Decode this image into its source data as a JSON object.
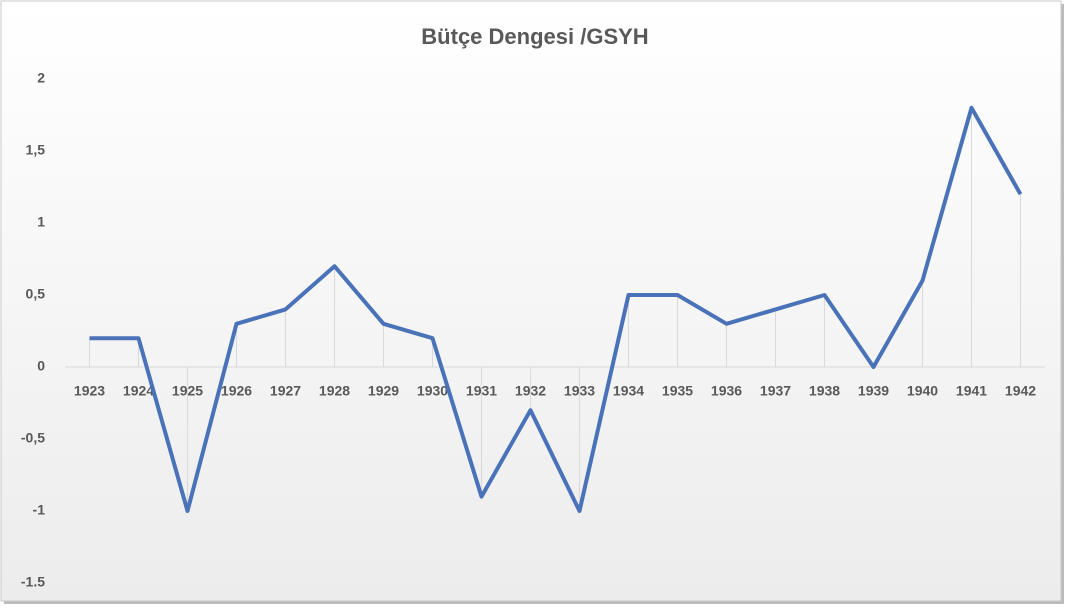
{
  "chart_data": {
    "type": "line",
    "title": "Bütçe Dengesi /GSYH",
    "categories": [
      "1923",
      "1924",
      "1925",
      "1926",
      "1927",
      "1928",
      "1929",
      "1930",
      "1931",
      "1932",
      "1933",
      "1934",
      "1935",
      "1936",
      "1937",
      "1938",
      "1939",
      "1940",
      "1941",
      "1942"
    ],
    "values": [
      0.2,
      0.2,
      -1,
      0.3,
      0.4,
      0.7,
      0.3,
      0.2,
      -0.9,
      -0.3,
      -1,
      0.5,
      0.5,
      0.3,
      0.4,
      0.5,
      0,
      0.6,
      1.8,
      1.2
    ],
    "color": "#4a72b8",
    "drop_lines": true,
    "ylim": [
      -1.5,
      2
    ],
    "yticks": [
      -1.5,
      {
        "value": -1.5,
        "label": "-1,5"
      },
      -1,
      {
        "value": -0.5,
        "label": "-0,5"
      },
      0,
      {
        "value": 0.5,
        "label": "0,5"
      },
      1,
      {
        "value": 1.5,
        "label": "1,5"
      },
      2
    ]
  }
}
